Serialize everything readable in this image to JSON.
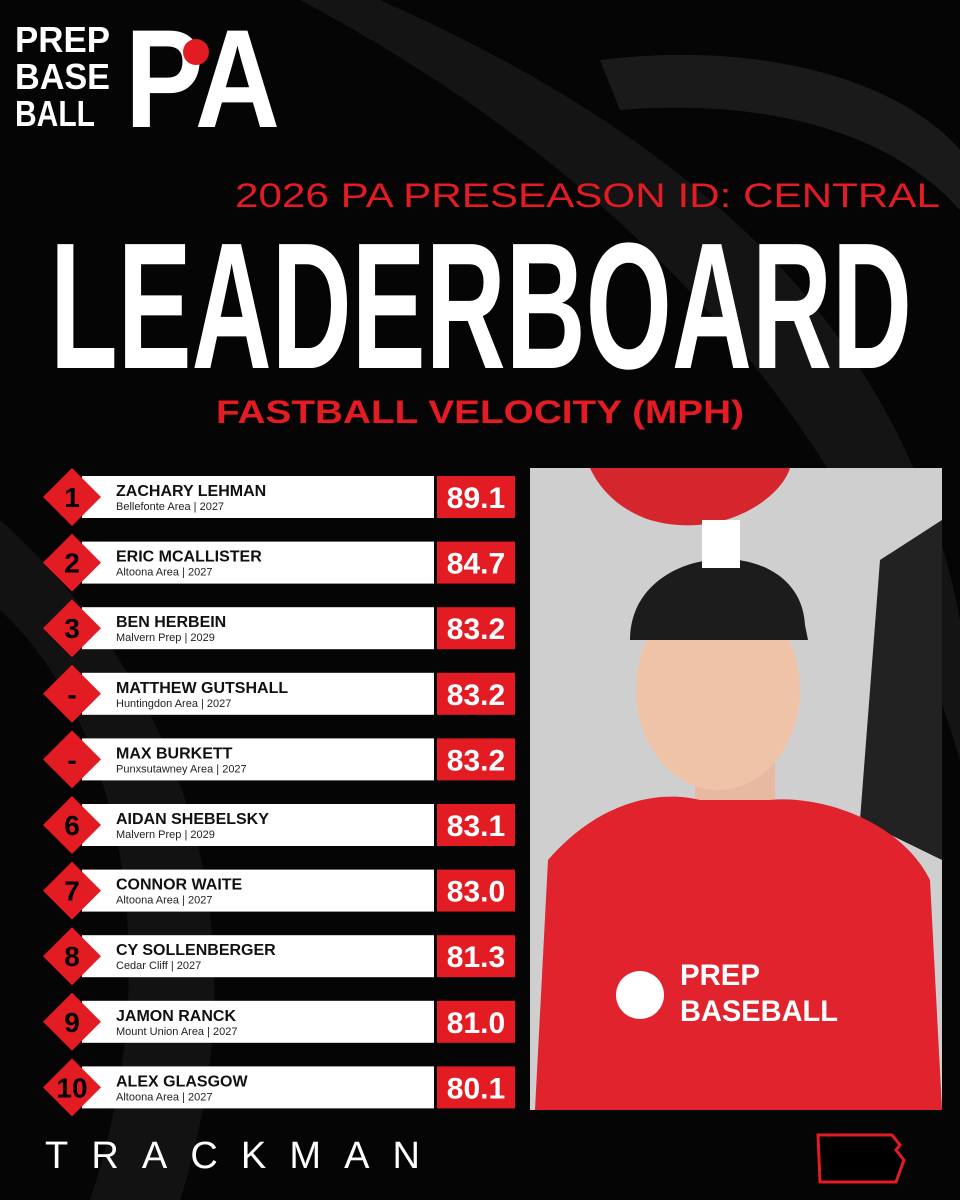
{
  "logo": {
    "lines": [
      "PREP",
      "BASE",
      "BALL"
    ],
    "mark": "PA"
  },
  "event": "2026 PA PRESEASON ID: CENTRAL",
  "title": "LEADERBOARD",
  "subtitle": "FASTBALL VELOCITY (MPH)",
  "leaderboard": {
    "rows": [
      {
        "rank": "1",
        "name": "ZACHARY LEHMAN",
        "detail": "Bellefonte Area | 2027",
        "value": "89.1"
      },
      {
        "rank": "2",
        "name": "ERIC MCALLISTER",
        "detail": "Altoona Area | 2027",
        "value": "84.7"
      },
      {
        "rank": "3",
        "name": "BEN HERBEIN",
        "detail": "Malvern Prep | 2029",
        "value": "83.2"
      },
      {
        "rank": "-",
        "name": "MATTHEW GUTSHALL",
        "detail": "Huntingdon Area | 2027",
        "value": "83.2"
      },
      {
        "rank": "-",
        "name": "MAX BURKETT",
        "detail": "Punxsutawney Area | 2027",
        "value": "83.2"
      },
      {
        "rank": "6",
        "name": "AIDAN SHEBELSKY",
        "detail": "Malvern Prep | 2029",
        "value": "83.1"
      },
      {
        "rank": "7",
        "name": "CONNOR WAITE",
        "detail": "Altoona Area | 2027",
        "value": "83.0"
      },
      {
        "rank": "8",
        "name": "CY SOLLENBERGER",
        "detail": "Cedar Cliff | 2027",
        "value": "81.3"
      },
      {
        "rank": "9",
        "name": "JAMON RANCK",
        "detail": "Mount Union Area | 2027",
        "value": "81.0"
      },
      {
        "rank": "10",
        "name": "ALEX GLASGOW",
        "detail": "Altoona Area | 2027",
        "value": "80.1"
      }
    ]
  },
  "photo": {
    "shirt_text": [
      "PREP",
      "BASEBALL"
    ]
  },
  "footer": {
    "sponsor": "TRACKMAN"
  }
}
